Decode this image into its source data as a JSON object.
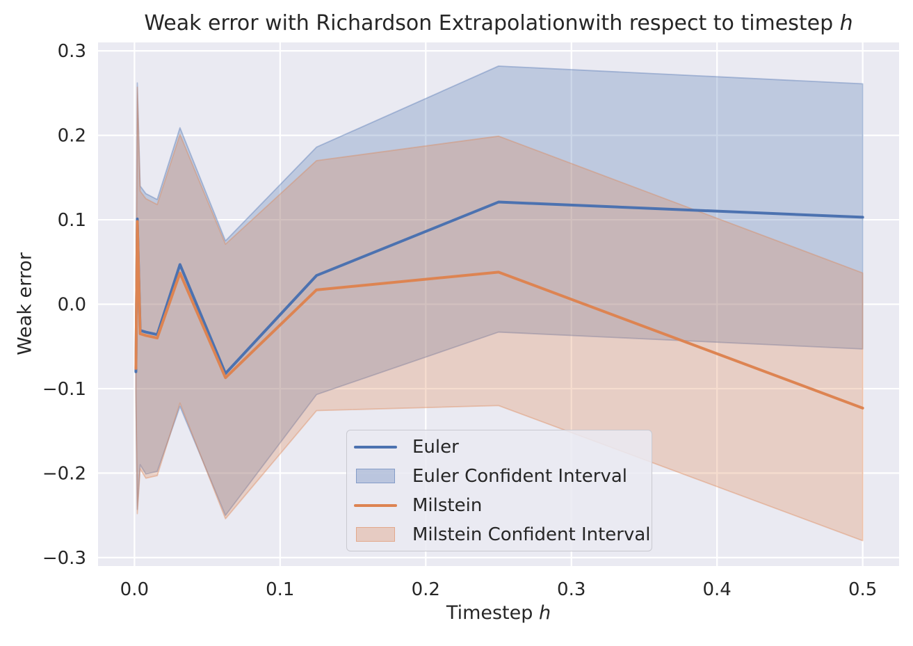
{
  "figure": {
    "title_main": "Weak error with Richardson Extrapolationwith respect to timestep ",
    "title_var": "h",
    "xlabel_main": "Timestep ",
    "xlabel_var": "h",
    "ylabel": "Weak error"
  },
  "legend": {
    "entries": [
      {
        "label": "Euler",
        "swatch": "line",
        "color": "#4C72B0"
      },
      {
        "label": "Euler Confident Interval",
        "swatch": "patch",
        "fill": "rgba(76,114,176,0.30)",
        "border": "rgba(76,114,176,0.50)"
      },
      {
        "label": "Milstein",
        "swatch": "line",
        "color": "#DD8452"
      },
      {
        "label": "Milstein Confident Interval",
        "swatch": "patch",
        "fill": "rgba(221,132,82,0.30)",
        "border": "rgba(221,132,82,0.50)"
      }
    ]
  },
  "chart_data": {
    "type": "line",
    "title": "Weak error with Richardson Extrapolationwith respect to timestep h",
    "xlabel": "Timestep h",
    "ylabel": "Weak error",
    "x": [
      0.5,
      0.25,
      0.125,
      0.0625,
      0.03125,
      0.015625,
      0.0078125,
      0.00390625,
      0.001953125,
      0.0009765625
    ],
    "series": [
      {
        "name": "Euler",
        "color": "#4C72B0",
        "values": [
          0.103,
          0.121,
          0.034,
          -0.082,
          0.047,
          -0.036,
          -0.033,
          -0.031,
          0.101,
          -0.08
        ],
        "ci_high": [
          0.261,
          0.282,
          0.186,
          0.075,
          0.209,
          0.124,
          0.131,
          0.14,
          0.262,
          -0.048
        ],
        "ci_low": [
          -0.053,
          -0.033,
          -0.107,
          -0.25,
          -0.121,
          -0.198,
          -0.201,
          -0.19,
          -0.243,
          -0.102
        ],
        "ci_label": "Euler Confident Interval"
      },
      {
        "name": "Milstein",
        "color": "#DD8452",
        "values": [
          -0.123,
          0.038,
          0.017,
          -0.087,
          0.037,
          -0.04,
          -0.037,
          -0.035,
          0.098,
          -0.076
        ],
        "ci_high": [
          0.037,
          0.199,
          0.17,
          0.071,
          0.201,
          0.118,
          0.125,
          0.134,
          0.257,
          -0.052
        ],
        "ci_low": [
          -0.28,
          -0.12,
          -0.126,
          -0.254,
          -0.117,
          -0.203,
          -0.206,
          -0.195,
          -0.248,
          -0.106
        ],
        "ci_label": "Milstein Confident Interval"
      }
    ],
    "xlim": [
      -0.025,
      0.525
    ],
    "ylim": [
      -0.31,
      0.31
    ],
    "x_ticks": {
      "values": [
        0.0,
        0.1,
        0.2,
        0.3,
        0.4,
        0.5
      ],
      "labels": [
        "0.0",
        "0.1",
        "0.2",
        "0.3",
        "0.4",
        "0.5"
      ]
    },
    "y_ticks": {
      "values": [
        0.3,
        0.2,
        0.1,
        0.0,
        -0.1,
        -0.2,
        -0.3
      ],
      "labels": [
        "0.3",
        "0.2",
        "0.1",
        "0.0",
        "−0.1",
        "−0.2",
        "−0.3"
      ]
    },
    "grid": true,
    "legend_position": "lower center inside axes",
    "colors": {
      "plot_background": "#EAEAF2",
      "grid": "#FFFFFF",
      "text": "#262626",
      "euler": "#4C72B0",
      "milstein": "#DD8452"
    },
    "ci_alpha": 0.28
  }
}
